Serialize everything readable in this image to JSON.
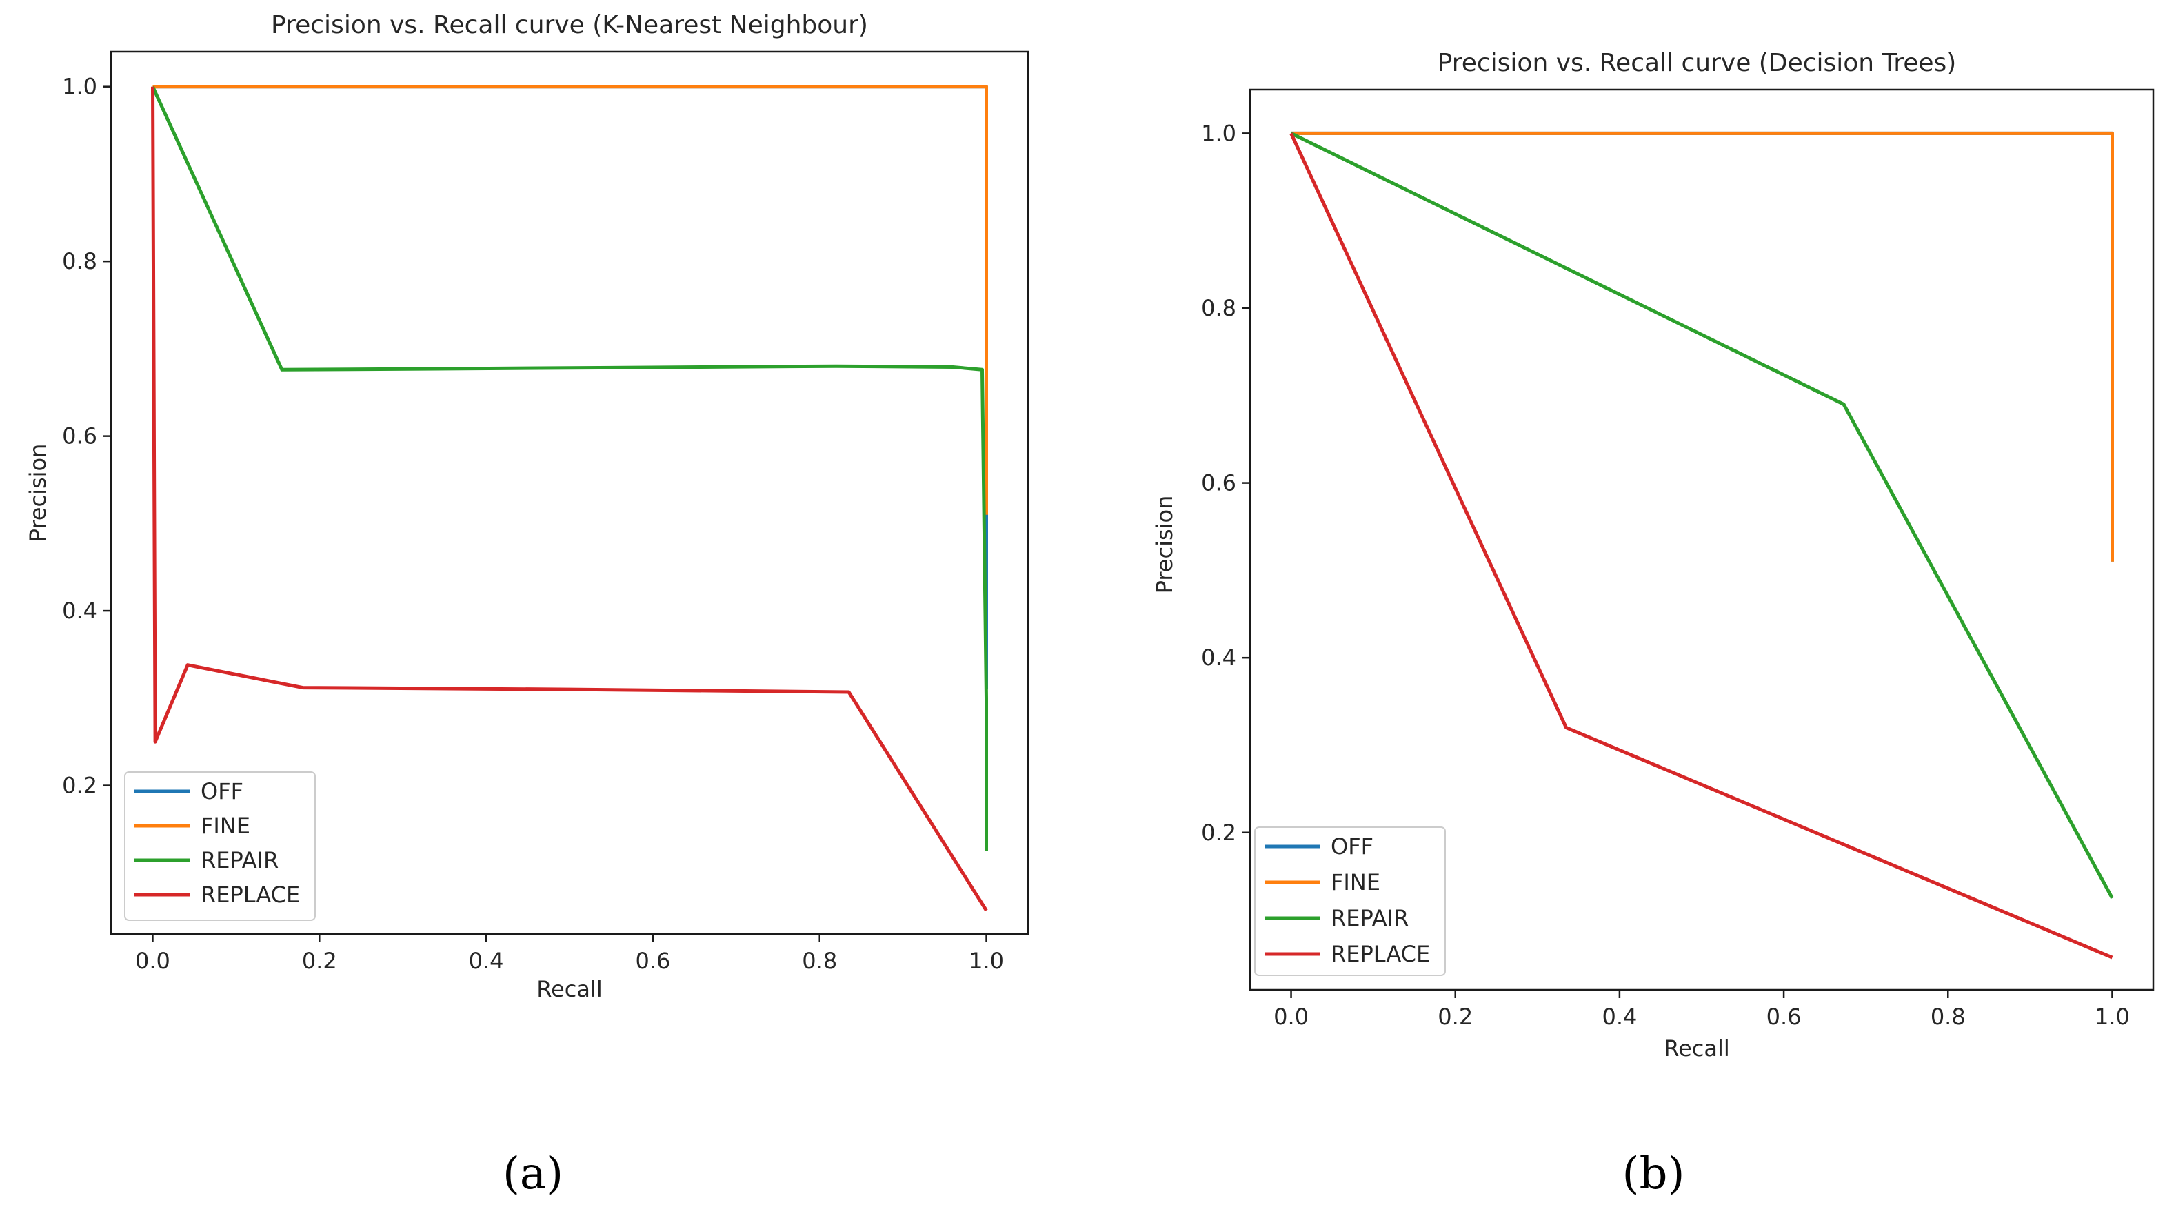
{
  "chart_data": [
    {
      "type": "line",
      "panel_label": "(a)",
      "title": "Precision vs. Recall curve (K-Nearest Neighbour)",
      "xlabel": "Recall",
      "ylabel": "Precision",
      "xlim": [
        -0.05,
        1.05
      ],
      "ylim": [
        0.03,
        1.04
      ],
      "xticks": [
        0.0,
        0.2,
        0.4,
        0.6,
        0.8,
        1.0
      ],
      "xtick_labels": [
        "0.0",
        "0.2",
        "0.4",
        "0.6",
        "0.8",
        "1.0"
      ],
      "yticks": [
        0.2,
        0.4,
        0.6,
        0.8,
        1.0
      ],
      "ytick_labels": [
        "0.2",
        "0.4",
        "0.6",
        "0.8",
        "1.0"
      ],
      "grid": false,
      "legend_position": "lower-left",
      "series": [
        {
          "name": "OFF",
          "color": "#1f77b4",
          "x": [
            0.0,
            1.0,
            1.0,
            1.0
          ],
          "y": [
            1.0,
            1.0,
            0.51,
            0.31
          ]
        },
        {
          "name": "FINE",
          "color": "#ff7f0e",
          "x": [
            0.0,
            1.0,
            1.0
          ],
          "y": [
            1.0,
            1.0,
            0.51
          ]
        },
        {
          "name": "REPAIR",
          "color": "#2ca02c",
          "x": [
            0.0,
            0.155,
            0.5,
            0.82,
            0.96,
            0.995,
            1.0,
            1.0
          ],
          "y": [
            1.0,
            0.676,
            0.678,
            0.68,
            0.679,
            0.676,
            0.3,
            0.125
          ]
        },
        {
          "name": "REPLACE",
          "color": "#d62728",
          "x": [
            0.0,
            0.003,
            0.042,
            0.18,
            0.5,
            0.835,
            1.0
          ],
          "y": [
            1.0,
            0.25,
            0.338,
            0.312,
            0.31,
            0.307,
            0.057
          ]
        }
      ]
    },
    {
      "type": "line",
      "panel_label": "(b)",
      "title": "Precision vs. Recall curve (Decision Trees)",
      "xlabel": "Recall",
      "ylabel": "Precision",
      "xlim": [
        -0.05,
        1.05
      ],
      "ylim": [
        0.02,
        1.05
      ],
      "xticks": [
        0.0,
        0.2,
        0.4,
        0.6,
        0.8,
        1.0
      ],
      "xtick_labels": [
        "0.0",
        "0.2",
        "0.4",
        "0.6",
        "0.8",
        "1.0"
      ],
      "yticks": [
        0.2,
        0.4,
        0.6,
        0.8,
        1.0
      ],
      "ytick_labels": [
        "0.2",
        "0.4",
        "0.6",
        "0.8",
        "1.0"
      ],
      "grid": false,
      "legend_position": "lower-left",
      "series": [
        {
          "name": "OFF",
          "color": "#1f77b4",
          "x": [
            0.0,
            1.0,
            1.0
          ],
          "y": [
            1.0,
            1.0,
            0.51
          ]
        },
        {
          "name": "FINE",
          "color": "#ff7f0e",
          "x": [
            0.0,
            1.0,
            1.0
          ],
          "y": [
            1.0,
            1.0,
            0.51
          ]
        },
        {
          "name": "REPAIR",
          "color": "#2ca02c",
          "x": [
            0.0,
            0.673,
            1.0
          ],
          "y": [
            1.0,
            0.69,
            0.125
          ]
        },
        {
          "name": "REPLACE",
          "color": "#d62728",
          "x": [
            0.0,
            0.335,
            1.0
          ],
          "y": [
            1.0,
            0.32,
            0.057
          ]
        }
      ]
    }
  ]
}
